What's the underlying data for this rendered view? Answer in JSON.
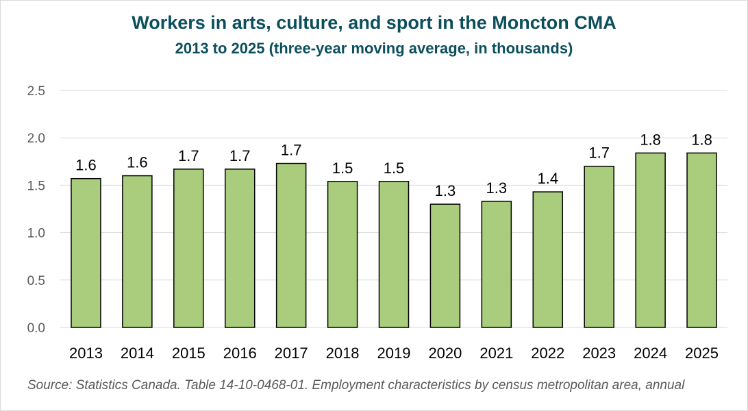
{
  "title": "Workers in arts, culture, and sport in the Moncton CMA",
  "subtitle": "2013 to 2025 (three-year moving average, in thousands)",
  "source": "Source: Statistics Canada. Table 14-10-0468-01. Employment characteristics by census metropolitan area, annual",
  "colors": {
    "bar_fill": "#a9cd7d",
    "bar_stroke": "#000000",
    "title": "#0b4f5c",
    "grid": "#d9d9d9"
  },
  "chart_data": {
    "type": "bar",
    "title": "Workers in arts, culture, and sport in the Moncton CMA",
    "subtitle": "2013 to 2025 (three-year moving average, in thousands)",
    "categories": [
      "2013",
      "2014",
      "2015",
      "2016",
      "2017",
      "2018",
      "2019",
      "2020",
      "2021",
      "2022",
      "2023",
      "2024",
      "2025"
    ],
    "values": [
      1.57,
      1.6,
      1.67,
      1.67,
      1.73,
      1.54,
      1.54,
      1.3,
      1.33,
      1.43,
      1.7,
      1.84,
      1.84
    ],
    "data_labels": [
      "1.6",
      "1.6",
      "1.7",
      "1.7",
      "1.7",
      "1.5",
      "1.5",
      "1.3",
      "1.3",
      "1.4",
      "1.7",
      "1.8",
      "1.8"
    ],
    "yticks": [
      "0.0",
      "0.5",
      "1.0",
      "1.5",
      "2.0",
      "2.5"
    ],
    "ylim": [
      0,
      2.5
    ],
    "xlabel": "",
    "ylabel": "",
    "grid": true,
    "legend": "none"
  }
}
